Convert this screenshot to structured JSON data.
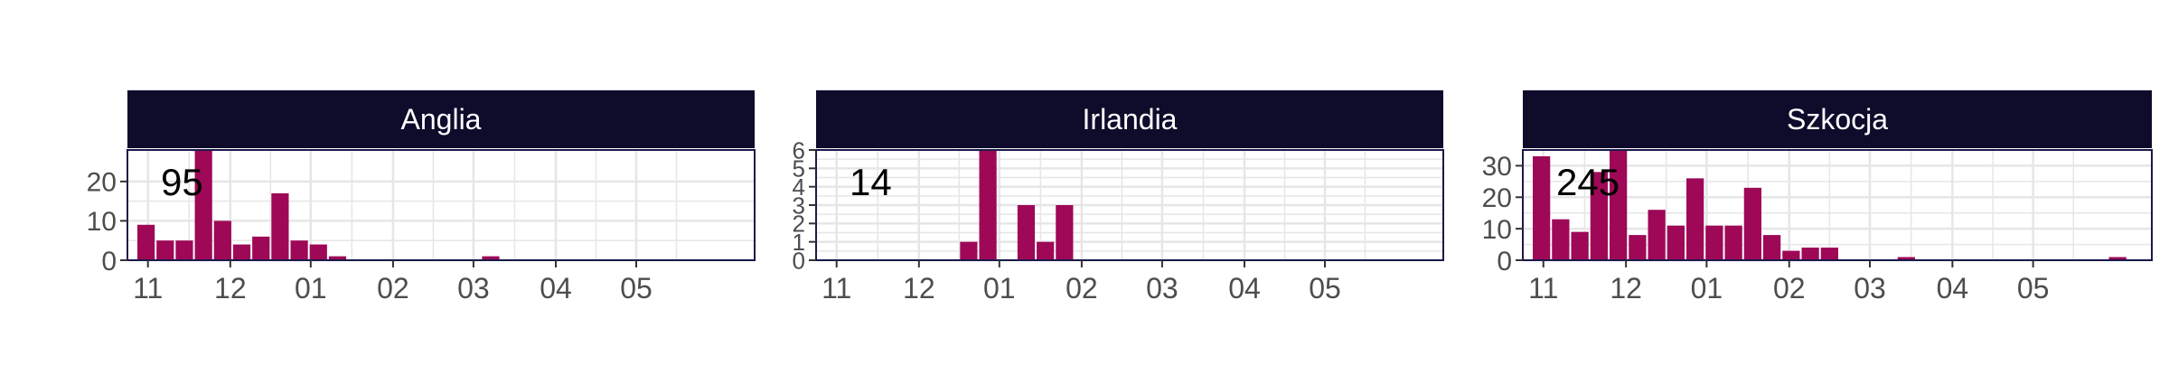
{
  "colors": {
    "bar": "#9e0857",
    "strip": "#0e0b2b",
    "strip_text": "#ffffff",
    "grid": "#e6e6e6",
    "panel_border": "#1a1a4a",
    "tick_text": "#4d4d4d",
    "annotation": "#000000"
  },
  "chart_data": {
    "type": "bar",
    "facet_by": "country",
    "x_axis": {
      "unit": "month",
      "tick_labels": [
        "11",
        "12",
        "01",
        "02",
        "03",
        "04",
        "05"
      ]
    },
    "grid": true,
    "panels": [
      {
        "title": "Anglia",
        "total_label": "95",
        "ylim": [
          0,
          28
        ],
        "yticks": [
          0,
          10,
          20
        ],
        "bars": [
          {
            "week": 1,
            "value": 9
          },
          {
            "week": 2,
            "value": 5
          },
          {
            "week": 3,
            "value": 5
          },
          {
            "week": 4,
            "value": 28
          },
          {
            "week": 5,
            "value": 10
          },
          {
            "week": 6,
            "value": 4
          },
          {
            "week": 7,
            "value": 6
          },
          {
            "week": 8,
            "value": 17
          },
          {
            "week": 9,
            "value": 5
          },
          {
            "week": 10,
            "value": 4
          },
          {
            "week": 11,
            "value": 1
          },
          {
            "week": 19,
            "value": 1
          }
        ]
      },
      {
        "title": "Irlandia",
        "total_label": "14",
        "ylim": [
          0,
          6
        ],
        "yticks": [
          0,
          1,
          2,
          3,
          4,
          5,
          6
        ],
        "bars": [
          {
            "week": 8,
            "value": 1
          },
          {
            "week": 9,
            "value": 6
          },
          {
            "week": 11,
            "value": 3
          },
          {
            "week": 12,
            "value": 1
          },
          {
            "week": 13,
            "value": 3
          }
        ]
      },
      {
        "title": "Szkocja",
        "total_label": "245",
        "ylim": [
          0,
          35
        ],
        "yticks": [
          0,
          10,
          20,
          30
        ],
        "bars": [
          {
            "week": 1,
            "value": 33
          },
          {
            "week": 2,
            "value": 13
          },
          {
            "week": 3,
            "value": 9
          },
          {
            "week": 4,
            "value": 28
          },
          {
            "week": 5,
            "value": 35
          },
          {
            "week": 6,
            "value": 8
          },
          {
            "week": 7,
            "value": 16
          },
          {
            "week": 8,
            "value": 11
          },
          {
            "week": 9,
            "value": 26
          },
          {
            "week": 10,
            "value": 11
          },
          {
            "week": 11,
            "value": 11
          },
          {
            "week": 12,
            "value": 23
          },
          {
            "week": 13,
            "value": 8
          },
          {
            "week": 14,
            "value": 3
          },
          {
            "week": 15,
            "value": 4
          },
          {
            "week": 16,
            "value": 4
          },
          {
            "week": 20,
            "value": 1
          },
          {
            "week": 31,
            "value": 1
          }
        ]
      }
    ]
  }
}
